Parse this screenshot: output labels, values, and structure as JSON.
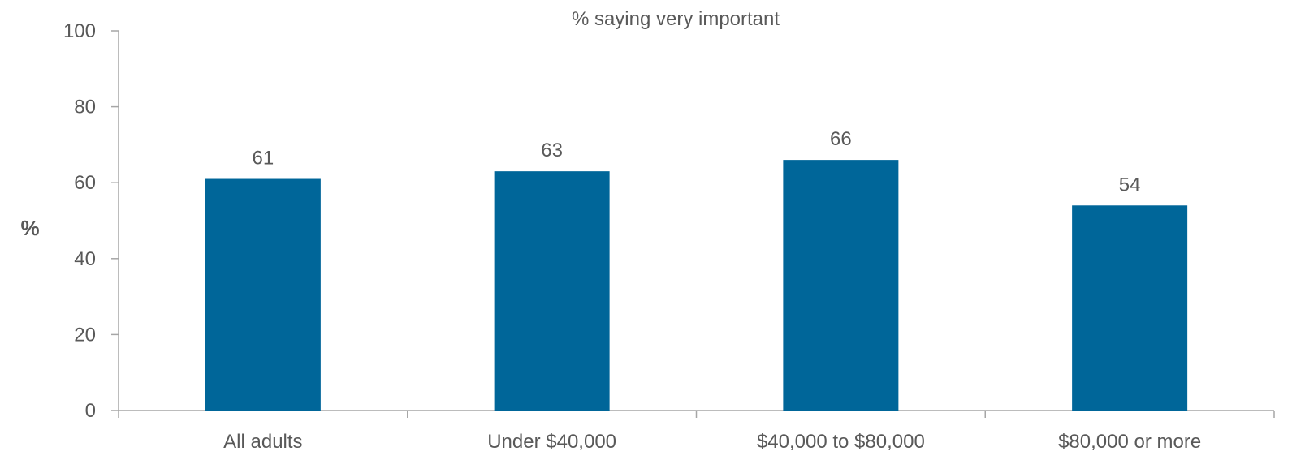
{
  "chart_data": {
    "type": "bar",
    "title": "% saying very important",
    "ylabel": "%",
    "xlabel": "",
    "categories": [
      "All adults",
      "Under $40,000",
      "$40,000 to $80,000",
      "$80,000 or more"
    ],
    "values": [
      61,
      63,
      66,
      54
    ],
    "data_labels": [
      "61",
      "63",
      "66",
      "54"
    ],
    "ylim": [
      0,
      100
    ],
    "yticks": [
      0,
      20,
      40,
      60,
      80,
      100
    ],
    "ytick_labels": [
      "0",
      "20",
      "40",
      "60",
      "80",
      "100"
    ],
    "grid": false,
    "legend": "none",
    "bar_color": "#006699",
    "axis_color": "#a6a6a6",
    "text_color": "#595959"
  }
}
